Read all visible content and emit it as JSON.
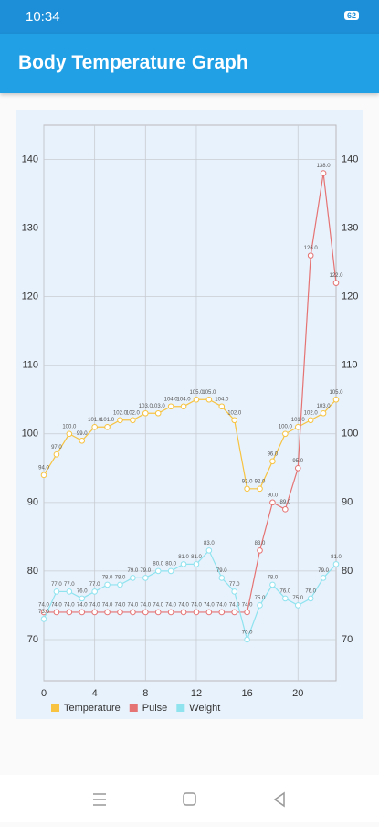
{
  "status_bar": {
    "time": "10:34",
    "battery": "62"
  },
  "app_bar": {
    "title": "Body Temperature Graph"
  },
  "chart_data": {
    "type": "line",
    "x": [
      0,
      1,
      2,
      3,
      4,
      5,
      6,
      7,
      8,
      9,
      10,
      11,
      12,
      13,
      14,
      15,
      16,
      17,
      18,
      19,
      20,
      21,
      22,
      23
    ],
    "xlim": [
      0,
      23
    ],
    "xticks": [
      0,
      4,
      8,
      12,
      16,
      20
    ],
    "ylim": [
      64,
      145
    ],
    "yticks": [
      70,
      80,
      90,
      100,
      110,
      120,
      130,
      140
    ],
    "grid": true,
    "legend": "bottom-left",
    "series": [
      {
        "name": "Temperature",
        "color": "#f7c340",
        "values": [
          94,
          97,
          100,
          99,
          101,
          101,
          102,
          102,
          103,
          103,
          104,
          104,
          105,
          105,
          104,
          102,
          92,
          92,
          96,
          100,
          101,
          102,
          103,
          105
        ],
        "value_labels": [
          "94.0",
          "97.0",
          "100.0",
          "99.0",
          "101.0",
          "101.0",
          "102.0",
          "102.0",
          "103.0",
          "103.0",
          "104.0",
          "104.0",
          "105.0",
          "105.0",
          "104.0",
          "102.0",
          "92.0",
          "92.0",
          "96.0",
          "100.0",
          "101.0",
          "102.0",
          "103.0",
          "105.0"
        ]
      },
      {
        "name": "Pulse",
        "color": "#e57373",
        "values": [
          74,
          74,
          74,
          74,
          74,
          74,
          74,
          74,
          74,
          74,
          74,
          74,
          74,
          74,
          74,
          74,
          74,
          83,
          90,
          89,
          95,
          126,
          138,
          122
        ],
        "value_labels": [
          "74.0",
          "74.0",
          "74.0",
          "74.0",
          "74.0",
          "74.0",
          "74.0",
          "74.0",
          "74.0",
          "74.0",
          "74.0",
          "74.0",
          "74.0",
          "74.0",
          "74.0",
          "74.0",
          "74.0",
          "83.0",
          "90.0",
          "89.0",
          "95.0",
          "126.0",
          "138.0",
          "122.0"
        ]
      },
      {
        "name": "Weight",
        "color": "#8ee3ef",
        "values": [
          73,
          77,
          77,
          76,
          77,
          78,
          78,
          79,
          79,
          80,
          80,
          81,
          81,
          83,
          79,
          77,
          70,
          75,
          78,
          76,
          75,
          76,
          79,
          81
        ],
        "value_labels": [
          "73.0",
          "77.0",
          "77.0",
          "76.0",
          "77.0",
          "78.0",
          "78.0",
          "79.0",
          "79.0",
          "80.0",
          "80.0",
          "81.0",
          "81.0",
          "83.0",
          "79.0",
          "77.0",
          "70.0",
          "75.0",
          "78.0",
          "76.0",
          "75.0",
          "76.0",
          "79.0",
          "81.0"
        ]
      }
    ]
  }
}
